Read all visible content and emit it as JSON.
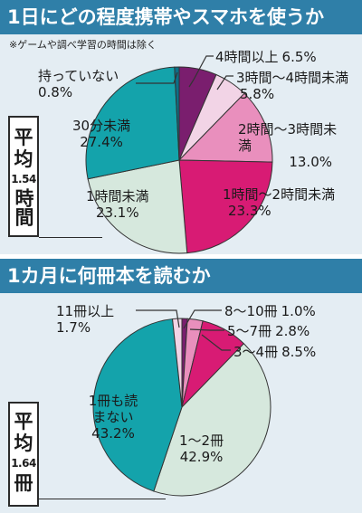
{
  "chart_data": [
    {
      "type": "pie",
      "title": "1日にどの程度携帯やスマホを使うか",
      "note": "※ゲームや調べ学習の時間は除く",
      "unit": "%",
      "average_label": {
        "chars": [
          "平",
          "均"
        ],
        "value": "1.54",
        "unit": "時間"
      },
      "slices": [
        {
          "label": "4時間以上",
          "value": 6.5,
          "value_text": "6.5%",
          "color": "#7a1e6e"
        },
        {
          "label": "3時間～4時間未満",
          "value": 5.8,
          "value_text": "5.8%",
          "color": "#f2d4e6"
        },
        {
          "label": "2時間～3時間未満",
          "value": 13.0,
          "value_text": "13.0%",
          "color": "#e98fbd"
        },
        {
          "label": "1時間～2時間未満",
          "value": 23.3,
          "value_text": "23.3%",
          "color": "#d81b74"
        },
        {
          "label": "1時間未満",
          "value": 23.1,
          "value_text": "23.1%",
          "color": "#d6e8dd"
        },
        {
          "label": "30分未満",
          "value": 27.4,
          "value_text": "27.4%",
          "color": "#14a3ab"
        },
        {
          "label": "持っていない",
          "value": 0.8,
          "value_text": "0.8%",
          "color": "#0d6f86"
        }
      ]
    },
    {
      "type": "pie",
      "title": "1カ月に何冊本を読むか",
      "unit": "%",
      "average_label": {
        "chars": [
          "平",
          "均"
        ],
        "value": "1.64",
        "unit": "冊"
      },
      "slices": [
        {
          "label": "8～10冊",
          "value": 1.0,
          "value_text": "1.0%",
          "color": "#7a1e6e"
        },
        {
          "label": "5～7冊",
          "value": 2.8,
          "value_text": "2.8%",
          "color": "#e98fbd"
        },
        {
          "label": "3～4冊",
          "value": 8.5,
          "value_text": "8.5%",
          "color": "#d81b74"
        },
        {
          "label": "1～2冊",
          "value": 42.9,
          "value_text": "42.9%",
          "color": "#d6e8dd"
        },
        {
          "label": "1冊も読まない",
          "value": 43.2,
          "value_text": "43.2%",
          "color": "#14a3ab"
        },
        {
          "label": "11冊以上",
          "value": 1.7,
          "value_text": "1.7%",
          "color": "#f2d4e6"
        }
      ]
    }
  ]
}
